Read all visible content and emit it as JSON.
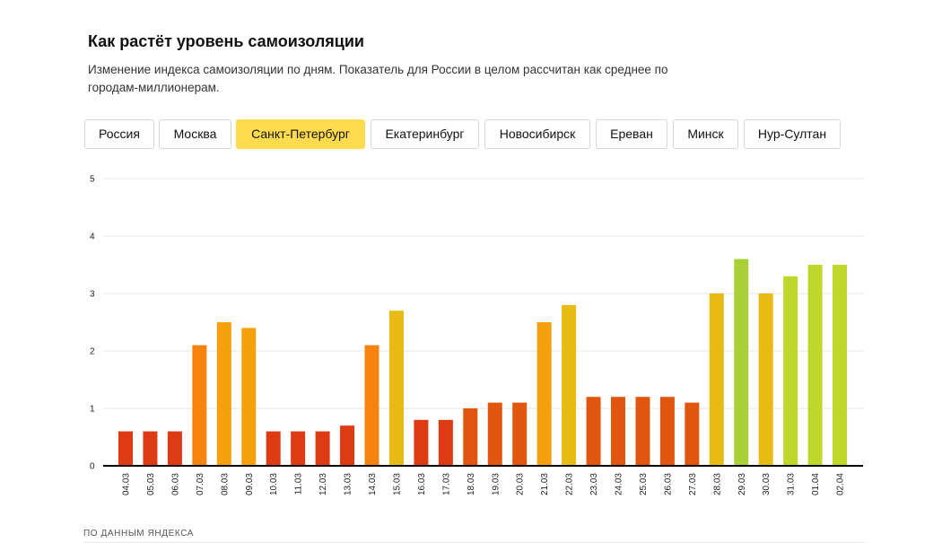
{
  "header": {
    "title": "Как растёт уровень самоизоляции",
    "subtitle": "Изменение индекса самоизоляции по дням. Показатель для России в целом рассчитан как среднее по городам-миллионерам."
  },
  "tabs": [
    {
      "label": "Россия",
      "active": false
    },
    {
      "label": "Москва",
      "active": false
    },
    {
      "label": "Санкт-Петербург",
      "active": true
    },
    {
      "label": "Екатеринбург",
      "active": false
    },
    {
      "label": "Новосибирск",
      "active": false
    },
    {
      "label": "Ереван",
      "active": false
    },
    {
      "label": "Минск",
      "active": false
    },
    {
      "label": "Нур-Султан",
      "active": false
    }
  ],
  "footer": {
    "source": "ПО ДАННЫМ ЯНДЕКСА"
  },
  "colors": {
    "active_tab": "#ffdb4d",
    "bar_scale": [
      "#de3a14",
      "#e0560f",
      "#f5830d",
      "#f5a00c",
      "#e8bb14",
      "#bfd62a",
      "#a7d136"
    ]
  },
  "chart_data": {
    "type": "bar",
    "categories": [
      "04.03",
      "05.03",
      "06.03",
      "07.03",
      "08.03",
      "09.03",
      "10.03",
      "11.03",
      "12.03",
      "13.03",
      "14.03",
      "15.03",
      "16.03",
      "17.03",
      "18.03",
      "19.03",
      "20.03",
      "21.03",
      "22.03",
      "23.03",
      "24.03",
      "25.03",
      "26.03",
      "27.03",
      "28.03",
      "29.03",
      "30.03",
      "31.03",
      "01.04",
      "02.04"
    ],
    "values": [
      0.6,
      0.6,
      0.6,
      2.1,
      2.5,
      2.4,
      0.6,
      0.6,
      0.6,
      0.7,
      2.1,
      2.7,
      0.8,
      0.8,
      1.0,
      1.1,
      1.1,
      2.5,
      2.8,
      1.2,
      1.2,
      1.2,
      1.2,
      1.1,
      3.0,
      3.6,
      3.0,
      3.3,
      3.5,
      3.5
    ],
    "ylim": [
      0,
      5
    ],
    "yticks": [
      "0",
      "1",
      "2",
      "3",
      "4",
      "5"
    ],
    "grid": true,
    "title": "",
    "xlabel": "",
    "ylabel": ""
  }
}
